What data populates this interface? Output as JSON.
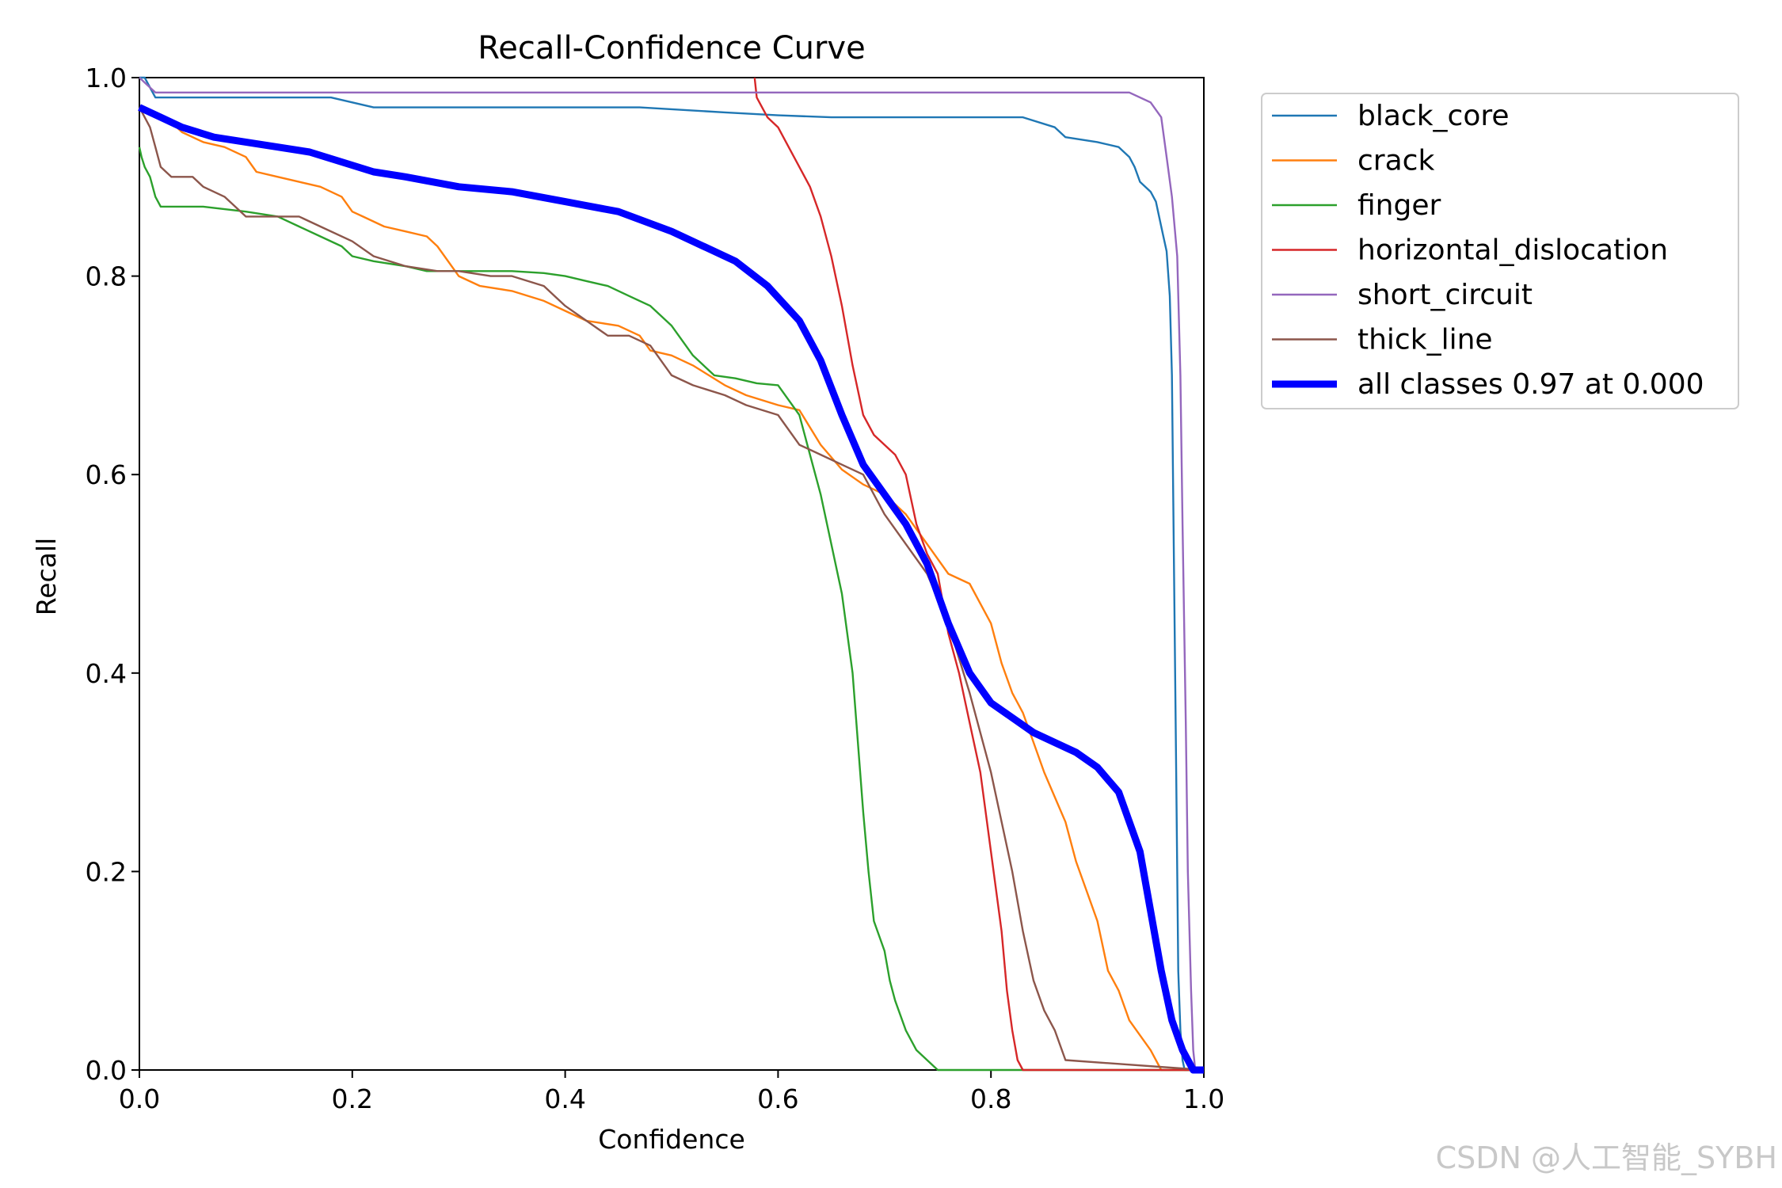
{
  "chart_data": {
    "type": "line",
    "title": "Recall-Confidence Curve",
    "xlabel": "Confidence",
    "ylabel": "Recall",
    "xlim": [
      0,
      1
    ],
    "ylim": [
      0,
      1
    ],
    "xticks": [
      "0.0",
      "0.2",
      "0.4",
      "0.6",
      "0.8",
      "1.0"
    ],
    "yticks": [
      "0.0",
      "0.2",
      "0.4",
      "0.6",
      "0.8",
      "1.0"
    ],
    "grid": false,
    "legend_position": "outside-top-right",
    "series": [
      {
        "name": "black_core",
        "color": "#1f77b4",
        "x": [
          0.0,
          0.005,
          0.01,
          0.015,
          0.02,
          0.05,
          0.1,
          0.15,
          0.18,
          0.2,
          0.22,
          0.25,
          0.3,
          0.4,
          0.47,
          0.55,
          0.6,
          0.65,
          0.7,
          0.8,
          0.83,
          0.86,
          0.87,
          0.9,
          0.92,
          0.93,
          0.935,
          0.94,
          0.95,
          0.955,
          0.96,
          0.962,
          0.965,
          0.968,
          0.97,
          0.972,
          0.974,
          0.976,
          0.978,
          0.98,
          0.982,
          0.985,
          1.0
        ],
        "y": [
          1.0,
          1.0,
          0.99,
          0.98,
          0.98,
          0.98,
          0.98,
          0.98,
          0.98,
          0.975,
          0.97,
          0.97,
          0.97,
          0.97,
          0.97,
          0.965,
          0.962,
          0.96,
          0.96,
          0.96,
          0.96,
          0.95,
          0.94,
          0.935,
          0.93,
          0.92,
          0.91,
          0.895,
          0.885,
          0.875,
          0.85,
          0.84,
          0.825,
          0.78,
          0.7,
          0.5,
          0.3,
          0.1,
          0.04,
          0.01,
          0.0,
          0.0,
          0.0
        ]
      },
      {
        "name": "crack",
        "color": "#ff7f0e",
        "x": [
          0.0,
          0.02,
          0.03,
          0.04,
          0.06,
          0.08,
          0.1,
          0.11,
          0.13,
          0.15,
          0.17,
          0.19,
          0.2,
          0.21,
          0.23,
          0.25,
          0.27,
          0.28,
          0.3,
          0.32,
          0.35,
          0.38,
          0.4,
          0.42,
          0.45,
          0.47,
          0.48,
          0.5,
          0.52,
          0.55,
          0.57,
          0.6,
          0.62,
          0.64,
          0.66,
          0.68,
          0.7,
          0.72,
          0.74,
          0.76,
          0.78,
          0.8,
          0.81,
          0.82,
          0.83,
          0.84,
          0.85,
          0.86,
          0.87,
          0.88,
          0.89,
          0.9,
          0.91,
          0.92,
          0.93,
          0.95,
          0.96,
          1.0
        ],
        "y": [
          0.97,
          0.96,
          0.955,
          0.945,
          0.935,
          0.93,
          0.92,
          0.905,
          0.9,
          0.895,
          0.89,
          0.88,
          0.865,
          0.86,
          0.85,
          0.845,
          0.84,
          0.83,
          0.8,
          0.79,
          0.785,
          0.775,
          0.765,
          0.755,
          0.75,
          0.74,
          0.725,
          0.72,
          0.71,
          0.69,
          0.68,
          0.67,
          0.665,
          0.63,
          0.605,
          0.59,
          0.58,
          0.56,
          0.53,
          0.5,
          0.49,
          0.45,
          0.41,
          0.38,
          0.36,
          0.33,
          0.3,
          0.275,
          0.25,
          0.21,
          0.18,
          0.15,
          0.1,
          0.08,
          0.05,
          0.02,
          0.0,
          0.0
        ]
      },
      {
        "name": "finger",
        "color": "#2ca02c",
        "x": [
          0.0,
          0.002,
          0.005,
          0.01,
          0.015,
          0.02,
          0.03,
          0.06,
          0.1,
          0.13,
          0.15,
          0.17,
          0.19,
          0.2,
          0.22,
          0.25,
          0.27,
          0.3,
          0.33,
          0.35,
          0.38,
          0.4,
          0.42,
          0.44,
          0.46,
          0.48,
          0.5,
          0.52,
          0.54,
          0.56,
          0.58,
          0.6,
          0.62,
          0.63,
          0.64,
          0.65,
          0.66,
          0.67,
          0.675,
          0.68,
          0.685,
          0.69,
          0.7,
          0.705,
          0.71,
          0.72,
          0.73,
          0.74,
          0.75,
          0.76,
          1.0
        ],
        "y": [
          0.93,
          0.92,
          0.91,
          0.9,
          0.88,
          0.87,
          0.87,
          0.87,
          0.865,
          0.86,
          0.85,
          0.84,
          0.83,
          0.82,
          0.815,
          0.81,
          0.805,
          0.805,
          0.805,
          0.805,
          0.803,
          0.8,
          0.795,
          0.79,
          0.78,
          0.77,
          0.75,
          0.72,
          0.7,
          0.697,
          0.692,
          0.69,
          0.66,
          0.62,
          0.58,
          0.53,
          0.48,
          0.4,
          0.33,
          0.26,
          0.2,
          0.15,
          0.12,
          0.09,
          0.07,
          0.04,
          0.02,
          0.01,
          0.0,
          0.0,
          0.0
        ]
      },
      {
        "name": "horizontal_dislocation",
        "color": "#d62728",
        "x": [
          0.578,
          0.58,
          0.59,
          0.6,
          0.61,
          0.62,
          0.63,
          0.64,
          0.65,
          0.66,
          0.67,
          0.68,
          0.69,
          0.7,
          0.71,
          0.72,
          0.73,
          0.74,
          0.75,
          0.76,
          0.77,
          0.78,
          0.79,
          0.8,
          0.81,
          0.815,
          0.82,
          0.825,
          0.83,
          1.0
        ],
        "y": [
          1.0,
          0.98,
          0.96,
          0.95,
          0.93,
          0.91,
          0.89,
          0.86,
          0.82,
          0.77,
          0.71,
          0.66,
          0.64,
          0.63,
          0.62,
          0.6,
          0.55,
          0.52,
          0.5,
          0.44,
          0.4,
          0.35,
          0.3,
          0.22,
          0.14,
          0.08,
          0.04,
          0.01,
          0.0,
          0.0
        ]
      },
      {
        "name": "short_circuit",
        "color": "#9467bd",
        "x": [
          0.0,
          0.005,
          0.01,
          0.015,
          0.02,
          0.05,
          0.1,
          0.3,
          0.5,
          0.7,
          0.85,
          0.9,
          0.93,
          0.95,
          0.96,
          0.965,
          0.97,
          0.975,
          0.978,
          0.98,
          0.983,
          0.985,
          0.988,
          0.99,
          0.992,
          1.0
        ],
        "y": [
          1.0,
          0.995,
          0.99,
          0.985,
          0.985,
          0.985,
          0.985,
          0.985,
          0.985,
          0.985,
          0.985,
          0.985,
          0.985,
          0.975,
          0.96,
          0.92,
          0.88,
          0.82,
          0.7,
          0.55,
          0.35,
          0.2,
          0.08,
          0.02,
          0.0,
          0.0
        ]
      },
      {
        "name": "thick_line",
        "color": "#8c564b",
        "x": [
          0.0,
          0.005,
          0.01,
          0.015,
          0.02,
          0.03,
          0.05,
          0.06,
          0.08,
          0.09,
          0.1,
          0.12,
          0.15,
          0.17,
          0.2,
          0.22,
          0.25,
          0.28,
          0.3,
          0.33,
          0.35,
          0.38,
          0.39,
          0.4,
          0.42,
          0.44,
          0.46,
          0.48,
          0.5,
          0.52,
          0.55,
          0.57,
          0.6,
          0.62,
          0.64,
          0.66,
          0.68,
          0.7,
          0.72,
          0.74,
          0.76,
          0.78,
          0.8,
          0.82,
          0.83,
          0.84,
          0.85,
          0.86,
          0.87,
          1.0
        ],
        "y": [
          0.97,
          0.96,
          0.95,
          0.93,
          0.91,
          0.9,
          0.9,
          0.89,
          0.88,
          0.87,
          0.86,
          0.86,
          0.86,
          0.85,
          0.835,
          0.82,
          0.81,
          0.805,
          0.805,
          0.8,
          0.8,
          0.79,
          0.78,
          0.77,
          0.755,
          0.74,
          0.74,
          0.73,
          0.7,
          0.69,
          0.68,
          0.67,
          0.66,
          0.63,
          0.62,
          0.61,
          0.6,
          0.56,
          0.53,
          0.5,
          0.45,
          0.38,
          0.3,
          0.2,
          0.14,
          0.09,
          0.06,
          0.04,
          0.01,
          0.0
        ]
      },
      {
        "name": "all classes 0.97 at 0.000",
        "color": "#0000ff",
        "bold": true,
        "x": [
          0.0,
          0.02,
          0.04,
          0.07,
          0.1,
          0.13,
          0.16,
          0.19,
          0.22,
          0.25,
          0.3,
          0.35,
          0.4,
          0.45,
          0.5,
          0.53,
          0.56,
          0.59,
          0.62,
          0.64,
          0.66,
          0.68,
          0.7,
          0.72,
          0.74,
          0.76,
          0.78,
          0.8,
          0.82,
          0.84,
          0.86,
          0.88,
          0.9,
          0.92,
          0.94,
          0.95,
          0.96,
          0.97,
          0.98,
          0.99,
          1.0
        ],
        "y": [
          0.97,
          0.96,
          0.95,
          0.94,
          0.935,
          0.93,
          0.925,
          0.915,
          0.905,
          0.9,
          0.89,
          0.885,
          0.875,
          0.865,
          0.845,
          0.83,
          0.815,
          0.79,
          0.755,
          0.715,
          0.66,
          0.61,
          0.58,
          0.55,
          0.51,
          0.45,
          0.4,
          0.37,
          0.355,
          0.34,
          0.33,
          0.32,
          0.305,
          0.28,
          0.22,
          0.16,
          0.1,
          0.05,
          0.02,
          0.0,
          0.0
        ]
      }
    ]
  },
  "watermark": "CSDN @人工智能_SYBH"
}
